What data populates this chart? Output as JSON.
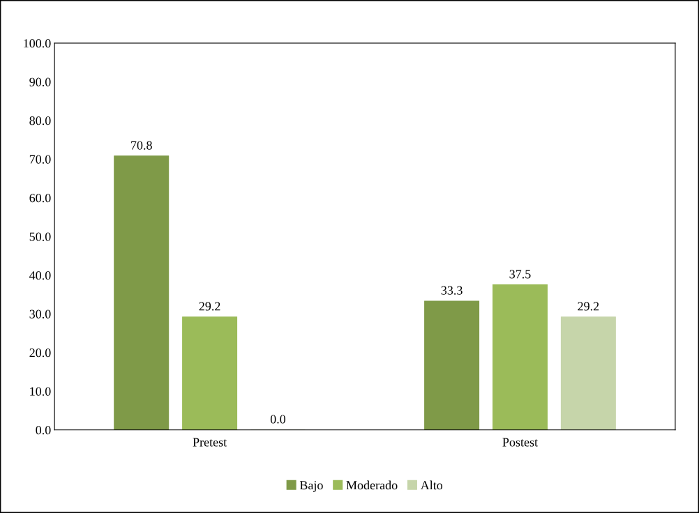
{
  "chart_data": {
    "type": "bar",
    "categories": [
      "Pretest",
      "Postest"
    ],
    "series": [
      {
        "name": "Bajo",
        "color": "#7f9a48",
        "values": [
          70.8,
          33.3
        ],
        "value_labels": [
          "70.8",
          "33.3"
        ]
      },
      {
        "name": "Moderado",
        "color": "#9bbb59",
        "values": [
          29.2,
          37.5
        ],
        "value_labels": [
          "29.2",
          "37.5"
        ]
      },
      {
        "name": "Alto",
        "color": "#c6d5aa",
        "values": [
          0.0,
          29.2
        ],
        "value_labels": [
          "0.0",
          "29.2"
        ]
      }
    ],
    "ylim": [
      0,
      100
    ],
    "yticks": [
      {
        "value": 0,
        "label": "0.0"
      },
      {
        "value": 10,
        "label": "10.0"
      },
      {
        "value": 20,
        "label": "20.0"
      },
      {
        "value": 30,
        "label": "30.0"
      },
      {
        "value": 40,
        "label": "40.0"
      },
      {
        "value": 50,
        "label": "50.0"
      },
      {
        "value": 60,
        "label": "60.0"
      },
      {
        "value": 70,
        "label": "70.0"
      },
      {
        "value": 80,
        "label": "80.0"
      },
      {
        "value": 90,
        "label": "90.0"
      },
      {
        "value": 100,
        "label": "100.0"
      }
    ],
    "grid": false,
    "legend": "bottom"
  }
}
